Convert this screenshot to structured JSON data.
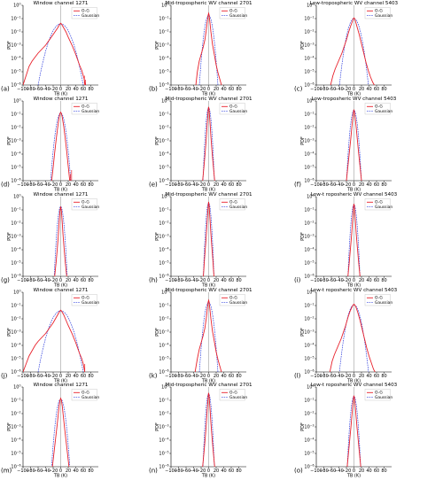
{
  "colors": {
    "og": "#e8202a",
    "gaussian": "#2c3cdc",
    "axis": "#000000",
    "zero_line": "#8a8a8a"
  },
  "chart_data": [
    {
      "type": "line",
      "label": "(a)",
      "title": "Window channel 1271",
      "ylabel": "PDF",
      "xlabel": "TB (K)",
      "xlim": [
        -100,
        100
      ],
      "ylim_log10": [
        -6,
        0
      ],
      "xticks": [
        "−100",
        "−80",
        "−60",
        "−40",
        "−20",
        "0",
        "20",
        "40",
        "60",
        "80"
      ],
      "yticks": [
        "10^-6",
        "10^-5",
        "10^-4",
        "10^-3",
        "10^-2",
        "10^-1",
        "10^0"
      ],
      "legend": [
        "O-G",
        "Gaussian"
      ],
      "legend_position": "top-right",
      "og_x": [
        -100,
        -92,
        -84,
        -76,
        -68,
        -60,
        -50,
        -40,
        -30,
        -20,
        -14,
        -8,
        -4,
        -2,
        0,
        2,
        4,
        8,
        14,
        20,
        30,
        40,
        50,
        56,
        60,
        62,
        64,
        66
      ],
      "og_log10_y": [
        -6,
        -5.3,
        -4.6,
        -4.2,
        -3.9,
        -3.6,
        -3.3,
        -3.0,
        -2.6,
        -2.2,
        -1.95,
        -1.7,
        -1.5,
        -1.4,
        -1.35,
        -1.4,
        -1.5,
        -1.7,
        -2.0,
        -2.4,
        -3.0,
        -3.7,
        -4.5,
        -4.9,
        -5.3,
        -5.5,
        -5.8,
        -6
      ],
      "gaussian_sigma": 13,
      "gaussian_peak_log10": -1.4,
      "spikes": [
        {
          "x": 63,
          "log10_y": -5.3
        },
        {
          "x": 66,
          "log10_y": -5.6
        }
      ]
    },
    {
      "type": "line",
      "label": "(b)",
      "title": "Mid-tropospheric WV channel 2701",
      "ylabel": "PDF",
      "xlabel": "TB (K)",
      "xlim": [
        -100,
        100
      ],
      "ylim_log10": [
        -6,
        0
      ],
      "xticks": [
        "−100",
        "−80",
        "−60",
        "−40",
        "−20",
        "0",
        "20",
        "40",
        "60",
        "80"
      ],
      "yticks": [
        "10^-6",
        "10^-5",
        "10^-4",
        "10^-3",
        "10^-2",
        "10^-1",
        "10^0"
      ],
      "legend": [
        "O-G",
        "Gaussian"
      ],
      "legend_position": "top-right",
      "og_x": [
        -34,
        -30,
        -25,
        -20,
        -15,
        -10,
        -6,
        -3,
        -1,
        0,
        1,
        3,
        6,
        10,
        15,
        20,
        25,
        30,
        34
      ],
      "og_log10_y": [
        -6,
        -5.0,
        -4.2,
        -3.7,
        -3.2,
        -2.6,
        -1.8,
        -1.1,
        -0.7,
        -0.6,
        -0.7,
        -1.2,
        -2.0,
        -2.9,
        -3.7,
        -4.5,
        -5.1,
        -5.6,
        -6
      ],
      "gaussian_sigma": 5,
      "gaussian_peak_log10": -0.75,
      "spikes": []
    },
    {
      "type": "line",
      "label": "(c)",
      "title": "Low-tropospheric WV channel 5403",
      "ylabel": "PDF",
      "xlabel": "TB (K)",
      "xlim": [
        -100,
        100
      ],
      "ylim_log10": [
        -6,
        0
      ],
      "xticks": [
        "−100",
        "−80",
        "−60",
        "−40",
        "−20",
        "0",
        "20",
        "40",
        "60",
        "80"
      ],
      "yticks": [
        "10^-6",
        "10^-5",
        "10^-4",
        "10^-3",
        "10^-2",
        "10^-1",
        "10^0"
      ],
      "legend": [
        "O-G",
        "Gaussian"
      ],
      "legend_position": "top-right",
      "og_x": [
        -62,
        -56,
        -50,
        -44,
        -38,
        -32,
        -26,
        -20,
        -14,
        -8,
        -4,
        -2,
        0,
        2,
        4,
        8,
        14,
        20,
        26,
        32,
        38,
        44,
        50,
        54
      ],
      "og_log10_y": [
        -6,
        -5.3,
        -4.8,
        -4.4,
        -4.0,
        -3.6,
        -3.1,
        -2.6,
        -2.0,
        -1.5,
        -1.2,
        -1.0,
        -0.95,
        -1.0,
        -1.2,
        -1.6,
        -2.2,
        -2.9,
        -3.6,
        -4.3,
        -4.9,
        -5.4,
        -5.8,
        -6
      ],
      "gaussian_sigma": 8,
      "gaussian_peak_log10": -1.0,
      "spikes": []
    },
    {
      "type": "line",
      "label": "(d)",
      "title": "Window channel 1271",
      "ylabel": "PDF",
      "xlabel": "TB (K)",
      "xlim": [
        -100,
        100
      ],
      "ylim_log10": [
        -6,
        0
      ],
      "xticks": [
        "−100",
        "−80",
        "−60",
        "−40",
        "−20",
        "0",
        "20",
        "40",
        "60",
        "80"
      ],
      "yticks": [
        "10^-6",
        "10^-5",
        "10^-4",
        "10^-3",
        "10^-2",
        "10^-1",
        "10^0"
      ],
      "legend": [
        "O-G",
        "Gaussian"
      ],
      "legend_position": "top-right",
      "og_x": [
        -24,
        -20,
        -16,
        -12,
        -8,
        -4,
        -2,
        0,
        2,
        4,
        8,
        12,
        16,
        20,
        24
      ],
      "og_log10_y": [
        -6,
        -5.0,
        -3.9,
        -2.9,
        -2.0,
        -1.2,
        -0.95,
        -0.85,
        -0.95,
        -1.2,
        -1.9,
        -2.8,
        -3.8,
        -4.9,
        -6
      ],
      "gaussian_sigma": 5.5,
      "gaussian_peak_log10": -0.9,
      "spikes": [
        {
          "x": 26,
          "log10_y": -5.5
        },
        {
          "x": 29,
          "log10_y": -5.2
        }
      ]
    },
    {
      "type": "line",
      "label": "(e)",
      "title": "Mid-tropospheric WV channel 2701",
      "ylabel": "PDF",
      "xlabel": "TB (K)",
      "xlim": [
        -100,
        100
      ],
      "ylim_log10": [
        -6,
        0
      ],
      "xticks": [
        "−100",
        "−80",
        "−60",
        "−40",
        "−20",
        "0",
        "20",
        "40",
        "60",
        "80"
      ],
      "yticks": [
        "10^-6",
        "10^-5",
        "10^-4",
        "10^-3",
        "10^-2",
        "10^-1",
        "10^0"
      ],
      "legend": [
        "O-G",
        "Gaussian"
      ],
      "legend_position": "top-right",
      "og_x": [
        -16,
        -12,
        -9,
        -6,
        -4,
        -2,
        -1,
        0,
        1,
        2,
        4,
        6,
        9,
        12,
        16
      ],
      "og_log10_y": [
        -6,
        -4.8,
        -3.8,
        -2.7,
        -1.8,
        -1.0,
        -0.6,
        -0.45,
        -0.6,
        -1.0,
        -1.8,
        -2.7,
        -3.8,
        -4.8,
        -6
      ],
      "gaussian_sigma": 3,
      "gaussian_peak_log10": -0.5,
      "spikes": []
    },
    {
      "type": "line",
      "label": "(f)",
      "title": "Low-troposheric WV channel 5403",
      "ylabel": "PDF",
      "xlabel": "TB (K)",
      "xlim": [
        -100,
        100
      ],
      "ylim_log10": [
        -6,
        0
      ],
      "xticks": [
        "−100",
        "−80",
        "−60",
        "−40",
        "−20",
        "0",
        "20",
        "40",
        "60",
        "80"
      ],
      "yticks": [
        "10^-6",
        "10^-5",
        "10^-4",
        "10^-3",
        "10^-2",
        "10^-1",
        "10^0"
      ],
      "legend": [
        "O-G",
        "Gaussian"
      ],
      "legend_position": "top-right",
      "og_x": [
        -20,
        -16,
        -12,
        -9,
        -6,
        -3,
        -1,
        0,
        1,
        3,
        6,
        9,
        12,
        16,
        20
      ],
      "og_log10_y": [
        -6,
        -4.9,
        -3.8,
        -3.0,
        -2.1,
        -1.2,
        -0.8,
        -0.65,
        -0.8,
        -1.2,
        -2.0,
        -2.9,
        -3.8,
        -4.9,
        -6
      ],
      "gaussian_sigma": 4,
      "gaussian_peak_log10": -0.7,
      "spikes": []
    },
    {
      "type": "line",
      "label": "(g)",
      "title": "Window channel 1271",
      "ylabel": "PDF",
      "xlabel": "TB (K)",
      "xlim": [
        -100,
        100
      ],
      "ylim_log10": [
        -6,
        0
      ],
      "xticks": [
        "−100",
        "−80",
        "−60",
        "−40",
        "−20",
        "0",
        "20",
        "40",
        "60",
        "80"
      ],
      "yticks": [
        "10^-6",
        "10^-5",
        "10^-4",
        "10^-3",
        "10^-2",
        "10^-1",
        "10^0"
      ],
      "legend": [
        "O-G",
        "Gaussian"
      ],
      "legend_position": "top-right",
      "og_x": [
        -16,
        -12,
        -9,
        -6,
        -4,
        -2,
        0,
        2,
        4,
        6,
        9,
        12,
        16
      ],
      "og_log10_y": [
        -6,
        -4.9,
        -3.9,
        -2.8,
        -1.9,
        -1.1,
        -0.75,
        -1.1,
        -1.9,
        -2.8,
        -3.9,
        -4.9,
        -6
      ],
      "gaussian_sigma": 3.5,
      "gaussian_peak_log10": -0.75,
      "spikes": []
    },
    {
      "type": "line",
      "label": "(h)",
      "title": "Mid-tropospheric WV channel 2701",
      "ylabel": "PDF",
      "xlabel": "TB (K)",
      "xlim": [
        -100,
        100
      ],
      "ylim_log10": [
        -6,
        0
      ],
      "xticks": [
        "−100",
        "−80",
        "−60",
        "−40",
        "−20",
        "0",
        "20",
        "40",
        "60",
        "80"
      ],
      "yticks": [
        "10^-6",
        "10^-5",
        "10^-4",
        "10^-3",
        "10^-2",
        "10^-1",
        "10^0"
      ],
      "legend": [
        "O-G",
        "Gaussian"
      ],
      "legend_position": "top-right",
      "og_x": [
        -14,
        -11,
        -8,
        -6,
        -4,
        -2,
        -1,
        0,
        1,
        2,
        4,
        6,
        8,
        11,
        14
      ],
      "og_log10_y": [
        -6,
        -4.7,
        -3.6,
        -2.8,
        -1.9,
        -1.0,
        -0.6,
        -0.4,
        -0.6,
        -1.0,
        -1.9,
        -2.8,
        -3.6,
        -4.7,
        -6
      ],
      "gaussian_sigma": 2.8,
      "gaussian_peak_log10": -0.45,
      "spikes": []
    },
    {
      "type": "line",
      "label": "(i)",
      "title": "Low-t roposheric WV channel 5403",
      "ylabel": "PDF",
      "xlabel": "TB (K)",
      "xlim": [
        -100,
        100
      ],
      "ylim_log10": [
        -6,
        0
      ],
      "xticks": [
        "−100",
        "−80",
        "−60",
        "−40",
        "−20",
        "0",
        "20",
        "40",
        "60",
        "80"
      ],
      "yticks": [
        "10^-6",
        "10^-5",
        "10^-4",
        "10^-3",
        "10^-2",
        "10^-1",
        "10^0"
      ],
      "legend": [
        "O-G",
        "Gaussian"
      ],
      "legend_position": "top-right",
      "og_x": [
        -16,
        -12,
        -9,
        -6,
        -4,
        -2,
        -1,
        0,
        1,
        2,
        4,
        6,
        9,
        12,
        16
      ],
      "og_log10_y": [
        -6,
        -4.8,
        -3.8,
        -2.8,
        -1.9,
        -1.1,
        -0.7,
        -0.55,
        -0.7,
        -1.1,
        -1.9,
        -2.8,
        -3.8,
        -4.8,
        -6
      ],
      "gaussian_sigma": 3.2,
      "gaussian_peak_log10": -0.6,
      "spikes": []
    },
    {
      "type": "line",
      "label": "(j)",
      "title": "Window channel 1271",
      "ylabel": "PDF",
      "xlabel": "TB (K)",
      "xlim": [
        -100,
        100
      ],
      "ylim_log10": [
        -6,
        0
      ],
      "xticks": [
        "−100",
        "−80",
        "−60",
        "−40",
        "−20",
        "0",
        "20",
        "40",
        "60",
        "80"
      ],
      "yticks": [
        "10^-6",
        "10^-5",
        "10^-4",
        "10^-3",
        "10^-2",
        "10^-1",
        "10^0"
      ],
      "legend": [
        "O-G",
        "Gaussian"
      ],
      "legend_position": "top-right",
      "og_x": [
        -100,
        -92,
        -84,
        -76,
        -68,
        -60,
        -50,
        -40,
        -30,
        -20,
        -14,
        -8,
        -4,
        -2,
        0,
        2,
        4,
        8,
        14,
        20,
        30,
        40,
        50,
        56,
        60,
        62,
        64
      ],
      "og_log10_y": [
        -6,
        -5.4,
        -4.8,
        -4.4,
        -4.0,
        -3.7,
        -3.4,
        -3.1,
        -2.7,
        -2.3,
        -2.0,
        -1.7,
        -1.5,
        -1.4,
        -1.35,
        -1.4,
        -1.5,
        -1.7,
        -2.1,
        -2.5,
        -3.1,
        -3.8,
        -4.6,
        -5.0,
        -5.4,
        -5.7,
        -6
      ],
      "gaussian_sigma": 13,
      "gaussian_peak_log10": -1.4,
      "spikes": [
        {
          "x": 64,
          "log10_y": -5.4
        }
      ]
    },
    {
      "type": "line",
      "label": "(k)",
      "title": "Mid-tropospheric WV channel 2701",
      "ylabel": "PDF",
      "xlabel": "TB (K)",
      "xlim": [
        -100,
        100
      ],
      "ylim_log10": [
        -6,
        0
      ],
      "xticks": [
        "−100",
        "−80",
        "−60",
        "−40",
        "−20",
        "0",
        "20",
        "40",
        "60",
        "80"
      ],
      "yticks": [
        "10^-6",
        "10^-5",
        "10^-4",
        "10^-3",
        "10^-2",
        "10^-1",
        "10^0"
      ],
      "legend": [
        "O-G",
        "Gaussian"
      ],
      "legend_position": "top-right",
      "og_x": [
        -36,
        -30,
        -25,
        -20,
        -15,
        -10,
        -6,
        -3,
        -1,
        0,
        1,
        3,
        6,
        10,
        15,
        20,
        25,
        30,
        34
      ],
      "og_log10_y": [
        -6,
        -5.0,
        -4.3,
        -3.8,
        -3.3,
        -2.7,
        -1.9,
        -1.1,
        -0.7,
        -0.6,
        -0.7,
        -1.2,
        -2.0,
        -2.9,
        -3.7,
        -4.5,
        -5.1,
        -5.6,
        -6
      ],
      "gaussian_sigma": 5,
      "gaussian_peak_log10": -0.75,
      "spikes": []
    },
    {
      "type": "line",
      "label": "(l)",
      "title": "Low-t roposheric WV channel 5403",
      "ylabel": "PDF",
      "xlabel": "TB (K)",
      "xlim": [
        -100,
        100
      ],
      "ylim_log10": [
        -6,
        0
      ],
      "xticks": [
        "−100",
        "−80",
        "−60",
        "−40",
        "−20",
        "0",
        "20",
        "40",
        "60",
        "80"
      ],
      "yticks": [
        "10^-6",
        "10^-5",
        "10^-4",
        "10^-3",
        "10^-2",
        "10^-1",
        "10^0"
      ],
      "legend": [
        "O-G",
        "Gaussian"
      ],
      "legend_position": "top-right",
      "og_x": [
        -64,
        -58,
        -52,
        -46,
        -40,
        -34,
        -28,
        -22,
        -16,
        -10,
        -5,
        -2,
        0,
        2,
        5,
        10,
        16,
        22,
        28,
        34,
        40,
        46,
        52,
        56
      ],
      "og_log10_y": [
        -6,
        -5.2,
        -4.7,
        -4.3,
        -3.9,
        -3.5,
        -3.0,
        -2.5,
        -1.9,
        -1.4,
        -1.1,
        -0.95,
        -0.9,
        -0.95,
        -1.1,
        -1.5,
        -2.1,
        -2.8,
        -3.5,
        -4.2,
        -4.8,
        -5.3,
        -5.8,
        -6
      ],
      "gaussian_sigma": 8,
      "gaussian_peak_log10": -0.95,
      "spikes": []
    },
    {
      "type": "line",
      "label": "(m)",
      "title": "Window channel 1271",
      "ylabel": "PDF",
      "xlabel": "TB (K)",
      "xlim": [
        -100,
        100
      ],
      "ylim_log10": [
        -6,
        0
      ],
      "xticks": [
        "−100",
        "−80",
        "−60",
        "−40",
        "−20",
        "0",
        "20",
        "40",
        "60",
        "80"
      ],
      "yticks": [
        "10^-6",
        "10^-5",
        "10^-4",
        "10^-3",
        "10^-2",
        "10^-1",
        "10^0"
      ],
      "legend": [
        "O-G",
        "Gaussian"
      ],
      "legend_position": "top-right",
      "og_x": [
        -22,
        -18,
        -14,
        -10,
        -7,
        -4,
        -2,
        0,
        2,
        4,
        7,
        10,
        14,
        18,
        22
      ],
      "og_log10_y": [
        -6,
        -5.0,
        -4.0,
        -3.0,
        -2.2,
        -1.4,
        -1.0,
        -0.85,
        -1.0,
        -1.4,
        -2.2,
        -3.0,
        -4.0,
        -5.0,
        -6
      ],
      "gaussian_sigma": 5,
      "gaussian_peak_log10": -0.9,
      "spikes": []
    },
    {
      "type": "line",
      "label": "(n)",
      "title": "Mid-tropospheric WV channel 2701",
      "ylabel": "PDF",
      "xlabel": "TB (K)",
      "xlim": [
        -100,
        100
      ],
      "ylim_log10": [
        -6,
        0
      ],
      "xticks": [
        "−100",
        "−80",
        "−60",
        "−40",
        "−20",
        "0",
        "20",
        "40",
        "60",
        "80"
      ],
      "yticks": [
        "10^-6",
        "10^-5",
        "10^-4",
        "10^-3",
        "10^-2",
        "10^-1",
        "10^0"
      ],
      "legend": [
        "O-G",
        "Gaussian"
      ],
      "legend_position": "top-right",
      "og_x": [
        -16,
        -12,
        -9,
        -6,
        -4,
        -2,
        -1,
        0,
        1,
        2,
        4,
        6,
        9,
        12,
        16
      ],
      "og_log10_y": [
        -6,
        -4.8,
        -3.8,
        -2.7,
        -1.8,
        -1.0,
        -0.6,
        -0.45,
        -0.6,
        -1.0,
        -1.8,
        -2.7,
        -3.8,
        -4.8,
        -6
      ],
      "gaussian_sigma": 3,
      "gaussian_peak_log10": -0.5,
      "spikes": []
    },
    {
      "type": "line",
      "label": "(o)",
      "title": "Low-t roposheric WV channel 5403",
      "ylabel": "PDF",
      "xlabel": "TB (K)",
      "xlim": [
        -100,
        100
      ],
      "ylim_log10": [
        -6,
        0
      ],
      "xticks": [
        "−100",
        "−80",
        "−60",
        "−40",
        "−20",
        "0",
        "20",
        "40",
        "60",
        "80"
      ],
      "yticks": [
        "10^-6",
        "10^-5",
        "10^-4",
        "10^-3",
        "10^-2",
        "10^-1",
        "10^0"
      ],
      "legend": [
        "O-G",
        "Gaussian"
      ],
      "legend_position": "top-right",
      "og_x": [
        -18,
        -14,
        -11,
        -8,
        -5,
        -3,
        -1,
        0,
        1,
        3,
        5,
        8,
        11,
        14,
        18
      ],
      "og_log10_y": [
        -6,
        -4.8,
        -3.9,
        -3.0,
        -2.0,
        -1.3,
        -0.8,
        -0.65,
        -0.8,
        -1.3,
        -2.0,
        -3.0,
        -3.9,
        -4.8,
        -6
      ],
      "gaussian_sigma": 3.6,
      "gaussian_peak_log10": -0.7,
      "spikes": []
    }
  ]
}
